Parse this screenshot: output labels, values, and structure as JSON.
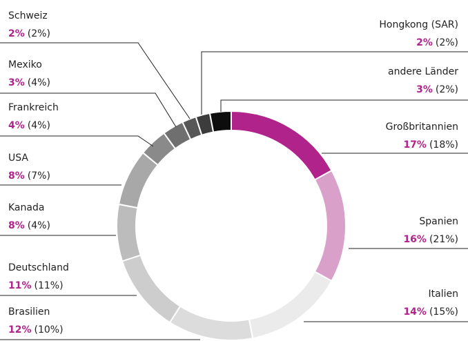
{
  "chart_data": {
    "type": "pie",
    "categories": [
      "Großbritannien",
      "Spanien",
      "Italien",
      "Brasilien",
      "Deutschland",
      "Kanada",
      "USA",
      "Frankreich",
      "Mexiko",
      "Schweiz",
      "Hongkong (SAR)",
      "andere Länder"
    ],
    "series": [
      {
        "values": [
          17,
          16,
          14,
          12,
          11,
          8,
          8,
          4,
          3,
          2,
          2,
          3
        ],
        "value_labels": [
          "17%",
          "16%",
          "14%",
          "12%",
          "11%",
          "8%",
          "8%",
          "4%",
          "3%",
          "2%",
          "2%",
          "3%"
        ],
        "colors": [
          "#b0238a",
          "#d9a0c9",
          "#ebebeb",
          "#dcdcdc",
          "#cdcdcd",
          "#bcbcbc",
          "#a8a8a8",
          "#8a8a8a",
          "#6f6f6f",
          "#575757",
          "#3c3c3c",
          "#0d0d0d"
        ]
      },
      {
        "values": [
          18,
          21,
          15,
          10,
          11,
          4,
          7,
          4,
          4,
          2,
          2,
          2
        ],
        "value_labels": [
          "(18%)",
          "(21%)",
          "(15%)",
          "(10%)",
          "(11%)",
          "(4%)",
          "(7%)",
          "(4%)",
          "(4%)",
          "(2%)",
          "(2%)",
          "(2%)"
        ]
      }
    ]
  }
}
